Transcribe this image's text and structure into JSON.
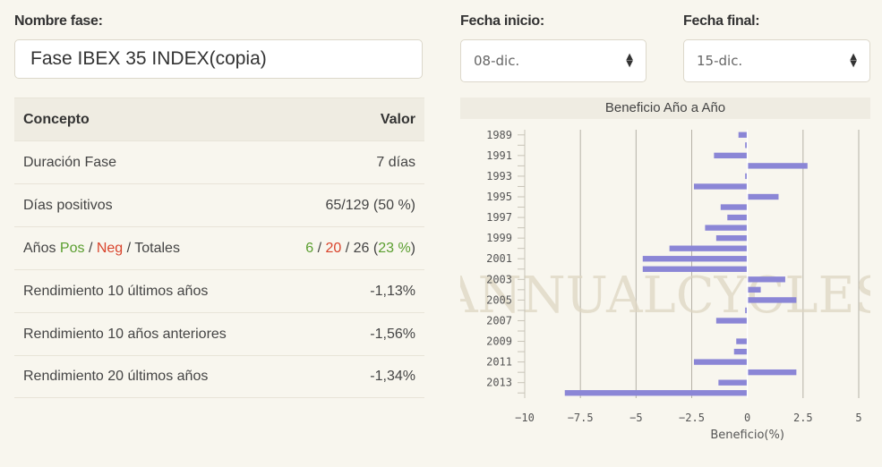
{
  "form": {
    "phase_name_label": "Nombre fase:",
    "phase_name_value": "Fase IBEX 35 INDEX(copia)",
    "start_date_label": "Fecha inicio:",
    "start_date_value": "08-dic.",
    "end_date_label": "Fecha final:",
    "end_date_value": "15-dic."
  },
  "table": {
    "header": {
      "concept": "Concepto",
      "value": "Valor"
    },
    "rows": [
      {
        "concept": "Duración Fase",
        "value": "7 días"
      },
      {
        "concept": "Días positivos",
        "value": "65/129 (50 %)"
      },
      {
        "concept": "Rendimiento 10 últimos años",
        "value": "-1,13%"
      },
      {
        "concept": "Rendimiento 10 años anteriores",
        "value": "-1,56%"
      },
      {
        "concept": "Rendimiento 20 últimos años",
        "value": "-1,34%"
      }
    ],
    "years_row": {
      "label_prefix": "Años ",
      "pos": "Pos",
      "sep1": " / ",
      "neg": "Neg",
      "sep2": " / Totales",
      "pos_count": "6",
      "slash1": " / ",
      "neg_count": "20",
      "slash2": " / 26 (",
      "percent": "23 %",
      "close": ")"
    }
  },
  "watermark": "ANNUALCYCLES",
  "colors": {
    "bar": "#8b86d6",
    "pos": "#5a9e2f",
    "neg": "#d9442c"
  },
  "chart_data": {
    "type": "bar",
    "orientation": "horizontal",
    "title": "Beneficio Año a Año",
    "xlabel": "Beneficio(%)",
    "xlim": [
      -10,
      5
    ],
    "xticks": [
      -10,
      -7.5,
      -5,
      -2.5,
      0,
      2.5,
      5
    ],
    "xtick_labels": [
      "−10",
      "−7.5",
      "−5",
      "−2.5",
      "0",
      "2.5",
      "5"
    ],
    "year_labels": [
      "1989",
      "1991",
      "1993",
      "1995",
      "1997",
      "1999",
      "2001",
      "2003",
      "2005",
      "2007",
      "2009",
      "2011",
      "2013"
    ],
    "categories": [
      1989,
      1990,
      1991,
      1992,
      1993,
      1994,
      1995,
      1996,
      1997,
      1998,
      1999,
      2000,
      2001,
      2002,
      2003,
      2004,
      2005,
      2006,
      2007,
      2008,
      2009,
      2010,
      2011,
      2012,
      2013,
      2014
    ],
    "values": [
      -0.4,
      -0.1,
      -1.5,
      2.7,
      -0.1,
      -2.4,
      1.4,
      -1.2,
      -0.9,
      -1.9,
      -1.4,
      -3.5,
      -4.7,
      -4.7,
      1.7,
      0.6,
      2.2,
      -0.1,
      -1.4,
      0.0,
      -0.5,
      -0.6,
      -2.4,
      2.2,
      -1.3,
      -8.2
    ]
  }
}
